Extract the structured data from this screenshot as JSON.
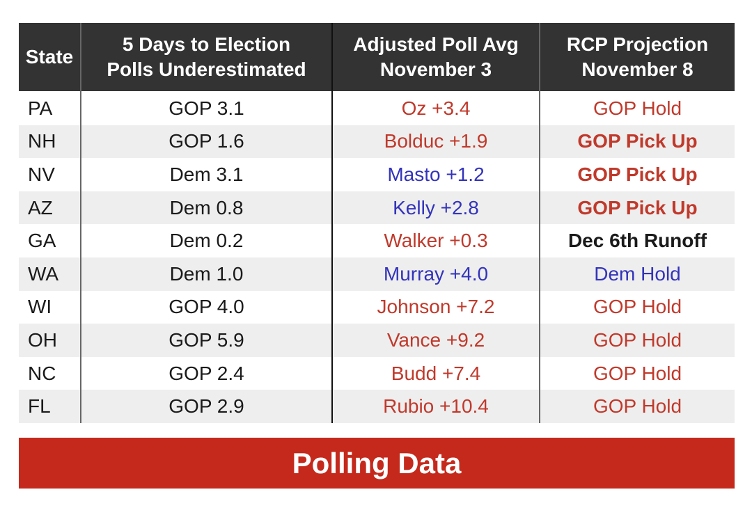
{
  "table": {
    "headers": [
      {
        "line1": "State",
        "line2": ""
      },
      {
        "line1": "5 Days to Election",
        "line2": "Polls Underestimated"
      },
      {
        "line1": "Adjusted Poll Avg",
        "line2": "November 3"
      },
      {
        "line1": "RCP Projection",
        "line2": "November 8"
      }
    ],
    "rows": [
      {
        "state": "PA",
        "underestimated": "GOP 3.1",
        "poll_avg": "Oz +3.4",
        "poll_party": "gop",
        "projection": "GOP Hold",
        "projection_style": "gop-hold"
      },
      {
        "state": "NH",
        "underestimated": "GOP 1.6",
        "poll_avg": "Bolduc +1.9",
        "poll_party": "gop",
        "projection": "GOP Pick Up",
        "projection_style": "gop-pickup"
      },
      {
        "state": "NV",
        "underestimated": "Dem 3.1",
        "poll_avg": "Masto +1.2",
        "poll_party": "dem",
        "projection": "GOP Pick Up",
        "projection_style": "gop-pickup"
      },
      {
        "state": "AZ",
        "underestimated": "Dem 0.8",
        "poll_avg": "Kelly +2.8",
        "poll_party": "dem",
        "projection": "GOP Pick Up",
        "projection_style": "gop-pickup"
      },
      {
        "state": "GA",
        "underestimated": "Dem 0.2",
        "poll_avg": "Walker +0.3",
        "poll_party": "gop",
        "projection": "Dec 6th Runoff",
        "projection_style": "runoff"
      },
      {
        "state": "WA",
        "underestimated": "Dem 1.0",
        "poll_avg": "Murray +4.0",
        "poll_party": "dem",
        "projection": "Dem Hold",
        "projection_style": "dem-hold"
      },
      {
        "state": "WI",
        "underestimated": "GOP 4.0",
        "poll_avg": "Johnson +7.2",
        "poll_party": "gop",
        "projection": "GOP Hold",
        "projection_style": "gop-hold"
      },
      {
        "state": "OH",
        "underestimated": "GOP 5.9",
        "poll_avg": "Vance +9.2",
        "poll_party": "gop",
        "projection": "GOP Hold",
        "projection_style": "gop-hold"
      },
      {
        "state": "NC",
        "underestimated": "GOP 2.4",
        "poll_avg": "Budd +7.4",
        "poll_party": "gop",
        "projection": "GOP Hold",
        "projection_style": "gop-hold"
      },
      {
        "state": "FL",
        "underestimated": "GOP 2.9",
        "poll_avg": "Rubio +10.4",
        "poll_party": "gop",
        "projection": "GOP Hold",
        "projection_style": "gop-hold"
      }
    ]
  },
  "banner": {
    "title": "Polling Data"
  },
  "colors": {
    "gop": "#c0392b",
    "dem": "#3333bb",
    "text": "#1a1a1a",
    "header_bg": "#333333",
    "banner_bg": "#c4291c",
    "row_shade": "#eeeeee"
  }
}
